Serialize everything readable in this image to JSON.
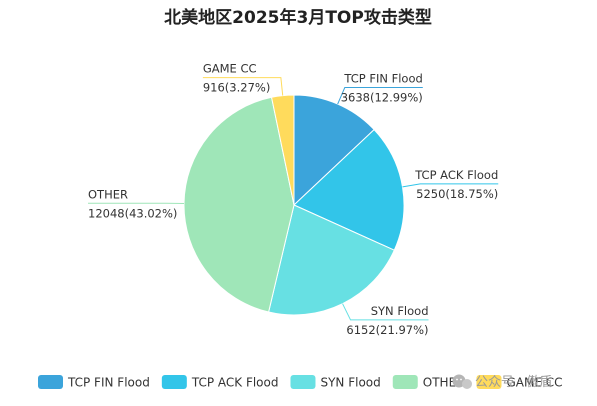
{
  "chart_data": {
    "type": "pie",
    "title": "北美地区2025年3月TOP攻击类型",
    "slices": [
      {
        "name": "TCP FIN Flood",
        "value": 3638,
        "percent_label": "12.99%",
        "value_label": "3638(12.99%)",
        "color": "#3BA4DB"
      },
      {
        "name": "TCP ACK Flood",
        "value": 5250,
        "percent_label": "18.75%",
        "value_label": "5250(18.75%)",
        "color": "#32C5E9"
      },
      {
        "name": "SYN Flood",
        "value": 6152,
        "percent_label": "21.97%",
        "value_label": "6152(21.97%)",
        "color": "#67E0E3"
      },
      {
        "name": "OTHER",
        "value": 12048,
        "percent_label": "43.02%",
        "value_label": "12048(43.02%)",
        "color": "#9FE6B8"
      },
      {
        "name": "GAME CC",
        "value": 916,
        "percent_label": "3.27%",
        "value_label": "916(3.27%)",
        "color": "#FFDB5C"
      }
    ],
    "legend": {
      "position": "bottom",
      "items": [
        "TCP FIN Flood",
        "TCP ACK Flood",
        "SYN Flood",
        "OTHER",
        "GAME CC"
      ]
    }
  },
  "watermark": {
    "icon": "wechat-icon",
    "text": "公众号 · 傲盾"
  }
}
